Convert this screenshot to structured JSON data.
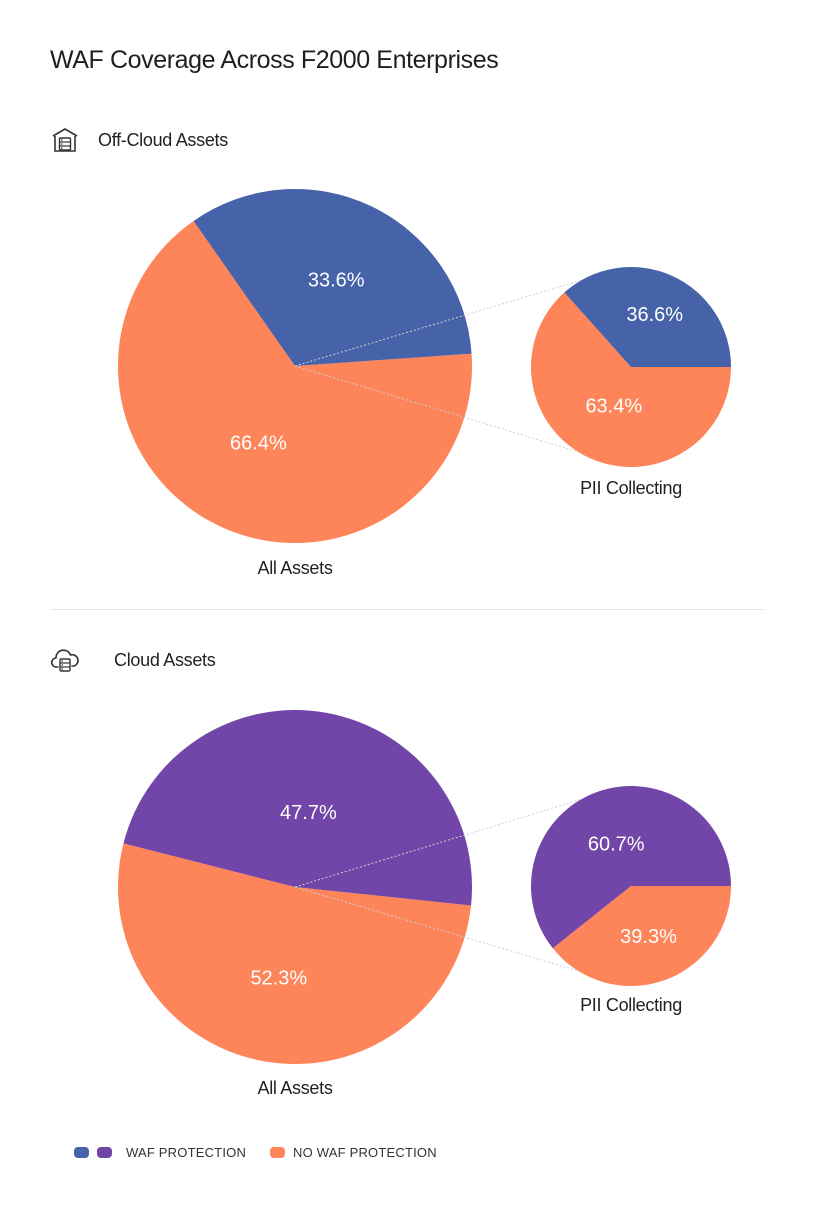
{
  "title": "WAF Coverage Across F2000 Enterprises",
  "sections": [
    {
      "label": "Off-Cloud Assets",
      "icon": "building-server-icon"
    },
    {
      "label": "Cloud Assets",
      "icon": "cloud-server-icon"
    }
  ],
  "colors": {
    "waf_offcloud": "#4662a8",
    "waf_cloud": "#7246a8",
    "no_waf": "#fe845a",
    "connector": "#cfcfcf"
  },
  "legend": {
    "waf_label": "WAF PROTECTION",
    "no_waf_label": "NO WAF PROTECTION"
  },
  "chart_data": [
    {
      "type": "pie",
      "section": "Off-Cloud Assets",
      "title": "All Assets",
      "categories": [
        "WAF PROTECTION",
        "NO WAF PROTECTION"
      ],
      "values": [
        33.6,
        66.4
      ],
      "labels": [
        "33.6%",
        "66.4%"
      ]
    },
    {
      "type": "pie",
      "section": "Off-Cloud Assets",
      "title": "PII Collecting",
      "categories": [
        "WAF PROTECTION",
        "NO WAF PROTECTION"
      ],
      "values": [
        36.6,
        63.4
      ],
      "labels": [
        "36.6%",
        "63.4%"
      ]
    },
    {
      "type": "pie",
      "section": "Cloud Assets",
      "title": "All Assets",
      "categories": [
        "WAF PROTECTION",
        "NO WAF PROTECTION"
      ],
      "values": [
        47.7,
        52.3
      ],
      "labels": [
        "47.7%",
        "52.3%"
      ]
    },
    {
      "type": "pie",
      "section": "Cloud Assets",
      "title": "PII Collecting",
      "categories": [
        "WAF PROTECTION",
        "NO WAF PROTECTION"
      ],
      "values": [
        60.7,
        39.3
      ],
      "labels": [
        "60.7%",
        "39.3%"
      ]
    }
  ]
}
